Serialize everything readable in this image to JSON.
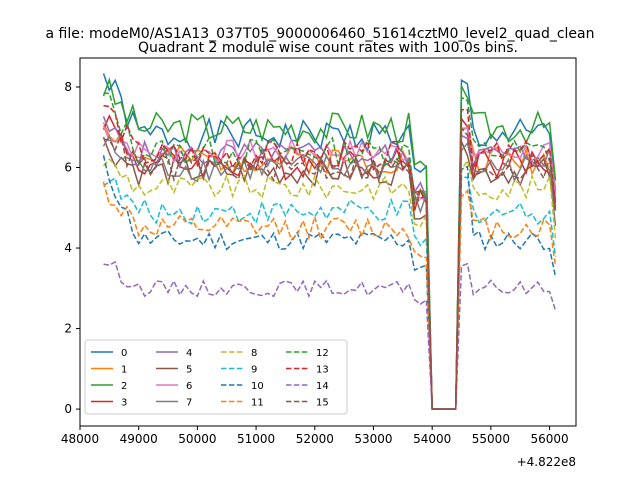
{
  "figure": {
    "suptitle": "a file: modeM0/AS1A13_037T05_9000006460_51614cztM0_level2_quad_clean",
    "offset_label": "+4.822e8"
  },
  "chart_data": {
    "type": "line",
    "title": "Quadrant 2 module wise count rates with 100.0s bins.",
    "xlabel": "",
    "ylabel": "",
    "x_offset": 482200000,
    "xlim": [
      48000,
      56450
    ],
    "ylim": [
      -0.42,
      8.72
    ],
    "xticks": [
      48000,
      49000,
      50000,
      51000,
      52000,
      53000,
      54000,
      55000,
      56000
    ],
    "yticks": [
      0,
      2,
      4,
      6,
      8
    ],
    "grid": false,
    "legend": {
      "placement": "lower-left",
      "columns": 4
    },
    "x_start": 48400,
    "x_step": 100,
    "n_points": 78,
    "gap_x": [
      53950,
      54400
    ],
    "series": [
      {
        "name": "0",
        "color": "#1f77b4",
        "dash": "solid",
        "level": 6.8,
        "start": 8.3,
        "wiggle": 0.4,
        "seed": 1
      },
      {
        "name": "1",
        "color": "#ff7f0e",
        "dash": "solid",
        "level": 6.2,
        "start": 7.2,
        "wiggle": 0.35,
        "seed": 2
      },
      {
        "name": "2",
        "color": "#2ca02c",
        "dash": "solid",
        "level": 7.0,
        "start": 8.0,
        "wiggle": 0.4,
        "seed": 3
      },
      {
        "name": "3",
        "color": "#d62728",
        "dash": "solid",
        "level": 6.1,
        "start": 7.3,
        "wiggle": 0.4,
        "seed": 4
      },
      {
        "name": "4",
        "color": "#9467bd",
        "dash": "solid",
        "level": 6.3,
        "start": 7.0,
        "wiggle": 0.35,
        "seed": 5
      },
      {
        "name": "5",
        "color": "#8c564b",
        "dash": "solid",
        "level": 5.9,
        "start": 6.6,
        "wiggle": 0.35,
        "seed": 6
      },
      {
        "name": "6",
        "color": "#e377c2",
        "dash": "solid",
        "level": 6.4,
        "start": 7.0,
        "wiggle": 0.3,
        "seed": 7
      },
      {
        "name": "7",
        "color": "#7f7f7f",
        "dash": "solid",
        "level": 6.0,
        "start": 6.6,
        "wiggle": 0.35,
        "seed": 8
      },
      {
        "name": "8",
        "color": "#bcbd22",
        "dash": "dashed",
        "level": 5.5,
        "start": 6.2,
        "wiggle": 0.3,
        "seed": 9
      },
      {
        "name": "9",
        "color": "#17becf",
        "dash": "dashed",
        "level": 4.9,
        "start": 5.8,
        "wiggle": 0.3,
        "seed": 10
      },
      {
        "name": "10",
        "color": "#1f77b4",
        "dash": "dashed",
        "level": 4.2,
        "start": 6.1,
        "wiggle": 0.25,
        "seed": 11
      },
      {
        "name": "11",
        "color": "#ff7f0e",
        "dash": "dashed",
        "level": 4.5,
        "start": 5.5,
        "wiggle": 0.3,
        "seed": 12
      },
      {
        "name": "12",
        "color": "#2ca02c",
        "dash": "dashed",
        "level": 6.4,
        "start": 7.8,
        "wiggle": 0.35,
        "seed": 13
      },
      {
        "name": "13",
        "color": "#d62728",
        "dash": "dashed",
        "level": 6.3,
        "start": 7.6,
        "wiggle": 0.35,
        "seed": 14
      },
      {
        "name": "14",
        "color": "#9467bd",
        "dash": "dashed",
        "level": 3.0,
        "start": 3.7,
        "wiggle": 0.2,
        "seed": 15
      },
      {
        "name": "15",
        "color": "#8c564b",
        "dash": "dashed",
        "level": 6.0,
        "start": 7.0,
        "wiggle": 0.35,
        "seed": 16
      }
    ]
  }
}
